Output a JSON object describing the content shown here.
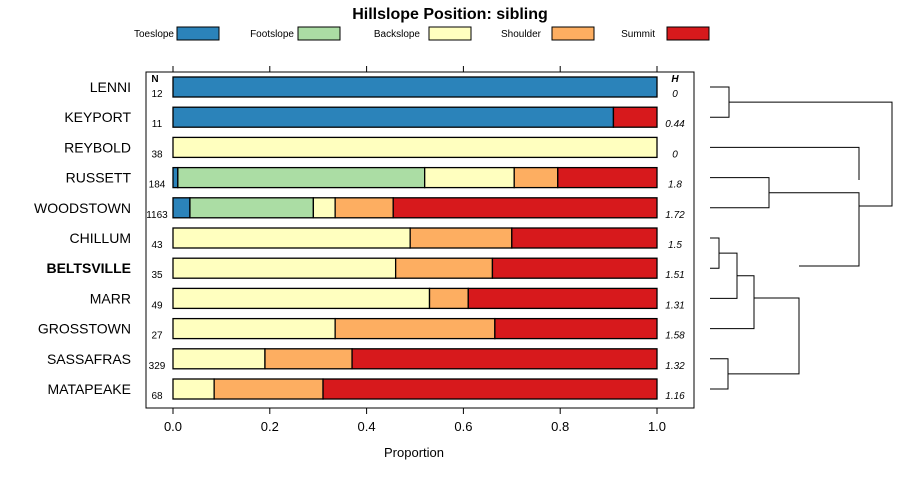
{
  "chart_data": {
    "type": "bar",
    "orientation": "horizontal",
    "stacked": true,
    "title": "Hillslope Position: sibling",
    "xlabel": "Proportion",
    "ylabel": "",
    "xlim": [
      0,
      1
    ],
    "x_ticks": [
      "0.0",
      "0.2",
      "0.4",
      "0.6",
      "0.8",
      "1.0"
    ],
    "n_header": "N",
    "h_header": "H",
    "categories": [
      "LENNI",
      "KEYPORT",
      "REYBOLD",
      "RUSSETT",
      "WOODSTOWN",
      "CHILLUM",
      "BELTSVILLE",
      "MARR",
      "GROSSTOWN",
      "SASSAFRAS",
      "MATAPEAKE"
    ],
    "highlight": "BELTSVILLE",
    "n": [
      "12",
      "11",
      "38",
      "184",
      "1163",
      "43",
      "35",
      "49",
      "27",
      "329",
      "68"
    ],
    "h": [
      "0",
      "0.44",
      "0",
      "1.8",
      "1.72",
      "1.5",
      "1.51",
      "1.31",
      "1.58",
      "1.32",
      "1.16"
    ],
    "series": [
      {
        "name": "Toeslope",
        "color": "#2b83ba",
        "values": [
          1.0,
          0.91,
          0,
          0.01,
          0.035,
          0,
          0,
          0,
          0,
          0,
          0
        ]
      },
      {
        "name": "Footslope",
        "color": "#abdda4",
        "values": [
          0,
          0,
          0,
          0.51,
          0.255,
          0,
          0,
          0,
          0,
          0,
          0
        ]
      },
      {
        "name": "Backslope",
        "color": "#ffffbf",
        "values": [
          0,
          0,
          1.0,
          0.185,
          0.045,
          0.49,
          0.46,
          0.53,
          0.335,
          0.19,
          0.085
        ]
      },
      {
        "name": "Shoulder",
        "color": "#fdae61",
        "values": [
          0,
          0,
          0,
          0.09,
          0.12,
          0.21,
          0.2,
          0.08,
          0.33,
          0.18,
          0.225
        ]
      },
      {
        "name": "Summit",
        "color": "#d7191c",
        "values": [
          0,
          0.09,
          0,
          0.205,
          0.545,
          0.3,
          0.34,
          0.39,
          0.335,
          0.63,
          0.69
        ]
      }
    ],
    "dendrogram": "average-linkage clustering of profiles (right side)"
  }
}
